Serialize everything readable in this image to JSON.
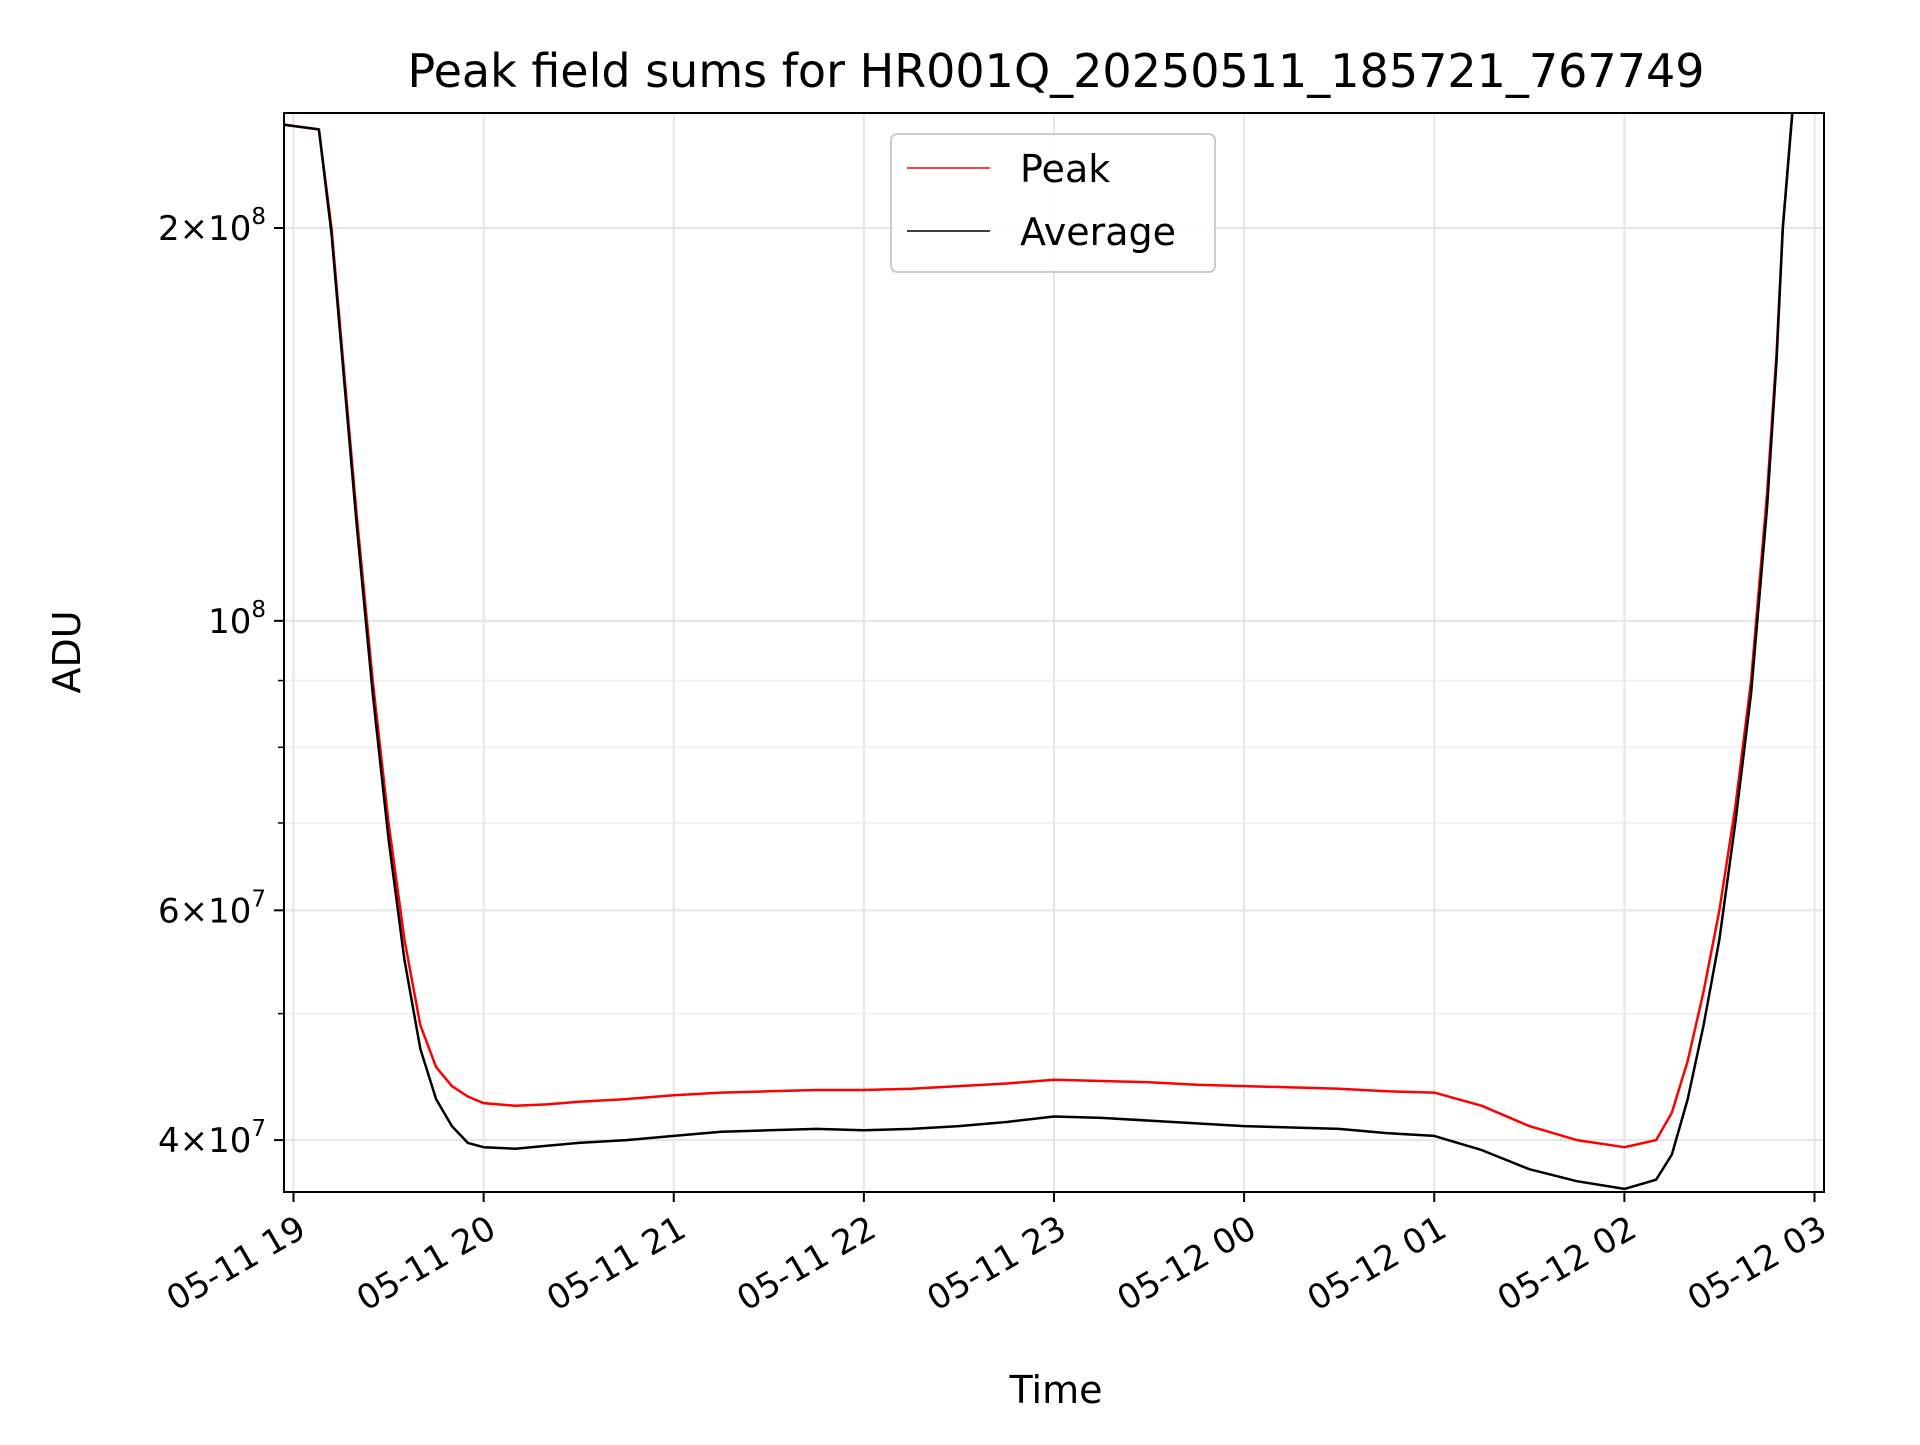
{
  "chart_data": {
    "type": "line",
    "title": "Peak field sums for HR001Q_20250511_185721_767749",
    "xlabel": "Time",
    "ylabel": "ADU",
    "y_scale": "log",
    "ylim": [
      36500000,
      245000000
    ],
    "x_range": [
      "2025-05-11 18:57",
      "2025-05-12 03:03"
    ],
    "x_ticks": [
      {
        "value": "2025-05-11 19:00",
        "label": "05-11 19"
      },
      {
        "value": "2025-05-11 20:00",
        "label": "05-11 20"
      },
      {
        "value": "2025-05-11 21:00",
        "label": "05-11 21"
      },
      {
        "value": "2025-05-11 22:00",
        "label": "05-11 22"
      },
      {
        "value": "2025-05-11 23:00",
        "label": "05-11 23"
      },
      {
        "value": "2025-05-12 00:00",
        "label": "05-12 00"
      },
      {
        "value": "2025-05-12 01:00",
        "label": "05-12 01"
      },
      {
        "value": "2025-05-12 02:00",
        "label": "05-12 02"
      },
      {
        "value": "2025-05-12 03:00",
        "label": "05-12 03"
      }
    ],
    "y_major_ticks": [
      {
        "value": 40000000,
        "mantissa": "4",
        "exp": "7"
      },
      {
        "value": 60000000,
        "mantissa": "6",
        "exp": "7"
      },
      {
        "value": 100000000,
        "mantissa": "",
        "exp": "8"
      },
      {
        "value": 200000000,
        "mantissa": "2",
        "exp": "8"
      }
    ],
    "y_minor_ticks": [
      50000000,
      70000000,
      80000000,
      90000000
    ],
    "grid": true,
    "legend_position": "upper center",
    "series": [
      {
        "name": "Peak",
        "color": "#ff0000",
        "x": [
          "2025-05-11 18:57",
          "2025-05-11 19:08",
          "2025-05-11 19:12",
          "2025-05-11 19:15",
          "2025-05-11 19:20",
          "2025-05-11 19:25",
          "2025-05-11 19:30",
          "2025-05-11 19:35",
          "2025-05-11 19:40",
          "2025-05-11 19:45",
          "2025-05-11 19:50",
          "2025-05-11 19:55",
          "2025-05-11 20:00",
          "2025-05-11 20:10",
          "2025-05-11 20:20",
          "2025-05-11 20:30",
          "2025-05-11 20:45",
          "2025-05-11 21:00",
          "2025-05-11 21:15",
          "2025-05-11 21:30",
          "2025-05-11 21:45",
          "2025-05-11 22:00",
          "2025-05-11 22:15",
          "2025-05-11 22:30",
          "2025-05-11 22:45",
          "2025-05-11 23:00",
          "2025-05-11 23:15",
          "2025-05-11 23:30",
          "2025-05-11 23:45",
          "2025-05-12 00:00",
          "2025-05-12 00:15",
          "2025-05-12 00:30",
          "2025-05-12 00:45",
          "2025-05-12 01:00",
          "2025-05-12 01:15",
          "2025-05-12 01:30",
          "2025-05-12 01:45",
          "2025-05-12 02:00",
          "2025-05-12 02:10",
          "2025-05-12 02:15",
          "2025-05-12 02:20",
          "2025-05-12 02:25",
          "2025-05-12 02:30",
          "2025-05-12 02:35",
          "2025-05-12 02:40",
          "2025-05-12 02:45",
          "2025-05-12 02:48",
          "2025-05-12 02:50",
          "2025-05-12 02:53"
        ],
        "y": [
          240000000,
          238000000,
          200000000,
          165000000,
          120000000,
          90000000,
          70000000,
          57000000,
          49000000,
          45500000,
          44000000,
          43200000,
          42700000,
          42500000,
          42600000,
          42800000,
          43000000,
          43300000,
          43500000,
          43600000,
          43700000,
          43700000,
          43800000,
          44000000,
          44200000,
          44500000,
          44400000,
          44300000,
          44100000,
          44000000,
          43900000,
          43800000,
          43600000,
          43500000,
          42500000,
          41000000,
          40000000,
          39500000,
          40000000,
          42000000,
          46000000,
          52000000,
          60000000,
          72000000,
          90000000,
          125000000,
          160000000,
          200000000,
          245000000
        ]
      },
      {
        "name": "Average",
        "color": "#000000",
        "x": [
          "2025-05-11 18:57",
          "2025-05-11 19:08",
          "2025-05-11 19:12",
          "2025-05-11 19:15",
          "2025-05-11 19:20",
          "2025-05-11 19:25",
          "2025-05-11 19:30",
          "2025-05-11 19:35",
          "2025-05-11 19:40",
          "2025-05-11 19:45",
          "2025-05-11 19:50",
          "2025-05-11 19:55",
          "2025-05-11 20:00",
          "2025-05-11 20:10",
          "2025-05-11 20:20",
          "2025-05-11 20:30",
          "2025-05-11 20:45",
          "2025-05-11 21:00",
          "2025-05-11 21:15",
          "2025-05-11 21:30",
          "2025-05-11 21:45",
          "2025-05-11 22:00",
          "2025-05-11 22:15",
          "2025-05-11 22:30",
          "2025-05-11 22:45",
          "2025-05-11 23:00",
          "2025-05-11 23:15",
          "2025-05-11 23:30",
          "2025-05-11 23:45",
          "2025-05-12 00:00",
          "2025-05-12 00:15",
          "2025-05-12 00:30",
          "2025-05-12 00:45",
          "2025-05-12 01:00",
          "2025-05-12 01:15",
          "2025-05-12 01:30",
          "2025-05-12 01:45",
          "2025-05-12 02:00",
          "2025-05-12 02:10",
          "2025-05-12 02:15",
          "2025-05-12 02:20",
          "2025-05-12 02:25",
          "2025-05-12 02:30",
          "2025-05-12 02:35",
          "2025-05-12 02:40",
          "2025-05-12 02:45",
          "2025-05-12 02:48",
          "2025-05-12 02:50",
          "2025-05-12 02:53"
        ],
        "y": [
          240000000,
          238000000,
          198000000,
          163000000,
          118000000,
          88000000,
          68000000,
          55000000,
          47000000,
          43000000,
          41000000,
          39800000,
          39500000,
          39400000,
          39600000,
          39800000,
          40000000,
          40300000,
          40600000,
          40700000,
          40800000,
          40700000,
          40800000,
          41000000,
          41300000,
          41700000,
          41600000,
          41400000,
          41200000,
          41000000,
          40900000,
          40800000,
          40500000,
          40300000,
          39300000,
          38000000,
          37200000,
          36700000,
          37300000,
          39000000,
          43000000,
          49000000,
          57000000,
          70000000,
          88000000,
          122000000,
          158000000,
          200000000,
          245000000
        ]
      }
    ]
  }
}
